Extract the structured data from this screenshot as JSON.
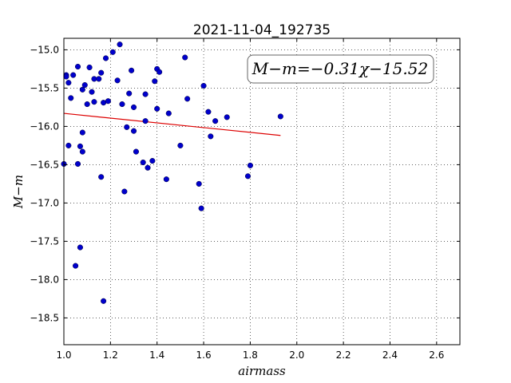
{
  "chart_data": {
    "type": "scatter",
    "title": "2021-11-04_192735",
    "xlabel": "airmass",
    "ylabel": "M−m",
    "xlim": [
      1.0,
      2.7
    ],
    "ylim": [
      -18.85,
      -14.85
    ],
    "x_ticks": [
      "1.0",
      "1.2",
      "1.4",
      "1.6",
      "1.8",
      "2.0",
      "2.2",
      "2.4",
      "2.6"
    ],
    "y_ticks": [
      "−15.0",
      "−15.5",
      "−16.0",
      "−16.5",
      "−17.0",
      "−17.5",
      "−18.0",
      "−18.5"
    ],
    "grid": true,
    "annotation": "M−m=−0.31χ−15.52",
    "colors": {
      "points": "#0000cc",
      "fit": "#dd0000"
    },
    "fit": {
      "slope": -0.31,
      "intercept": -15.52,
      "x_range": [
        1.0,
        1.93
      ]
    },
    "points": [
      [
        1.0,
        -16.49
      ],
      [
        1.01,
        -15.33
      ],
      [
        1.01,
        -15.35
      ],
      [
        1.02,
        -16.25
      ],
      [
        1.02,
        -15.43
      ],
      [
        1.03,
        -15.63
      ],
      [
        1.04,
        -15.33
      ],
      [
        1.05,
        -17.82
      ],
      [
        1.06,
        -16.49
      ],
      [
        1.06,
        -15.22
      ],
      [
        1.07,
        -16.26
      ],
      [
        1.07,
        -17.58
      ],
      [
        1.08,
        -16.33
      ],
      [
        1.08,
        -16.08
      ],
      [
        1.08,
        -15.52
      ],
      [
        1.09,
        -15.46
      ],
      [
        1.1,
        -15.71
      ],
      [
        1.11,
        -15.23
      ],
      [
        1.12,
        -15.55
      ],
      [
        1.13,
        -15.68
      ],
      [
        1.13,
        -15.38
      ],
      [
        1.15,
        -15.38
      ],
      [
        1.16,
        -16.66
      ],
      [
        1.16,
        -15.3
      ],
      [
        1.17,
        -18.28
      ],
      [
        1.17,
        -15.69
      ],
      [
        1.18,
        -15.11
      ],
      [
        1.19,
        -15.67
      ],
      [
        1.21,
        -15.03
      ],
      [
        1.23,
        -15.4
      ],
      [
        1.24,
        -14.93
      ],
      [
        1.25,
        -15.71
      ],
      [
        1.26,
        -16.85
      ],
      [
        1.27,
        -16.01
      ],
      [
        1.28,
        -15.57
      ],
      [
        1.29,
        -15.27
      ],
      [
        1.3,
        -16.06
      ],
      [
        1.3,
        -15.75
      ],
      [
        1.31,
        -16.33
      ],
      [
        1.34,
        -16.47
      ],
      [
        1.35,
        -15.93
      ],
      [
        1.35,
        -15.58
      ],
      [
        1.36,
        -16.54
      ],
      [
        1.38,
        -16.45
      ],
      [
        1.39,
        -15.41
      ],
      [
        1.4,
        -15.77
      ],
      [
        1.4,
        -15.25
      ],
      [
        1.41,
        -15.29
      ],
      [
        1.44,
        -16.69
      ],
      [
        1.45,
        -15.83
      ],
      [
        1.5,
        -16.25
      ],
      [
        1.52,
        -15.1
      ],
      [
        1.53,
        -15.64
      ],
      [
        1.58,
        -16.75
      ],
      [
        1.59,
        -17.07
      ],
      [
        1.6,
        -15.47
      ],
      [
        1.62,
        -15.81
      ],
      [
        1.63,
        -16.13
      ],
      [
        1.65,
        -15.93
      ],
      [
        1.7,
        -15.88
      ],
      [
        1.79,
        -16.65
      ],
      [
        1.8,
        -16.51
      ],
      [
        1.93,
        -15.87
      ]
    ]
  }
}
